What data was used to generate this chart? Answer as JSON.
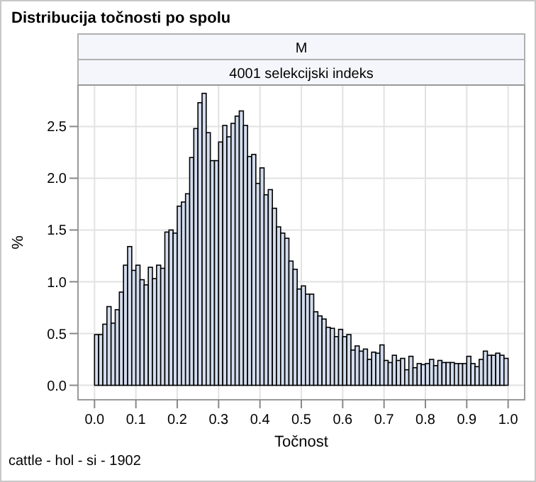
{
  "chart_data": {
    "type": "histogram",
    "title": "Distribucija točnosti po spolu",
    "subtitle": [
      "M",
      "4001 selekcijski indeks"
    ],
    "xlabel": "Točnost",
    "ylabel": "%",
    "annotations": [
      "cattle - hol - si - 1902"
    ],
    "bins": [
      0,
      0.01,
      0.02,
      0.03,
      0.04,
      0.05,
      0.06,
      0.07,
      0.08,
      0.09,
      0.1,
      0.11,
      0.12,
      0.13,
      0.14,
      0.15,
      0.16,
      0.17,
      0.18,
      0.19,
      0.2,
      0.21,
      0.22,
      0.23,
      0.24,
      0.25,
      0.26,
      0.27,
      0.28,
      0.29,
      0.3,
      0.31,
      0.32,
      0.33,
      0.34,
      0.35,
      0.36,
      0.37,
      0.38,
      0.39,
      0.4,
      0.41,
      0.42,
      0.43,
      0.44,
      0.45,
      0.46,
      0.47,
      0.48,
      0.49,
      0.5,
      0.51,
      0.52,
      0.53,
      0.54,
      0.55,
      0.56,
      0.57,
      0.58,
      0.59,
      0.6,
      0.61,
      0.62,
      0.63,
      0.64,
      0.65,
      0.66,
      0.67,
      0.68,
      0.69,
      0.7,
      0.71,
      0.72,
      0.73,
      0.74,
      0.75,
      0.76,
      0.77,
      0.78,
      0.79,
      0.8,
      0.81,
      0.82,
      0.83,
      0.84,
      0.85,
      0.86,
      0.87,
      0.88,
      0.89,
      0.9,
      0.91,
      0.92,
      0.93,
      0.94,
      0.95,
      0.96,
      0.97,
      0.98,
      0.99,
      1.0
    ],
    "values": [
      0.49,
      0.49,
      0.59,
      0.76,
      0.6,
      0.73,
      0.9,
      1.16,
      1.34,
      1.11,
      1.16,
      1.02,
      0.97,
      1.14,
      1.03,
      1.16,
      1.13,
      1.48,
      1.5,
      1.47,
      1.73,
      1.77,
      1.85,
      2.2,
      2.48,
      2.73,
      2.82,
      2.44,
      2.17,
      2.17,
      2.35,
      2.51,
      2.4,
      2.53,
      2.6,
      2.65,
      2.51,
      2.21,
      2.23,
      1.95,
      2.1,
      1.84,
      1.89,
      1.71,
      1.53,
      1.47,
      1.42,
      1.2,
      1.12,
      0.93,
      0.96,
      0.88,
      0.88,
      0.71,
      0.67,
      0.64,
      0.56,
      0.55,
      0.47,
      0.54,
      0.47,
      0.49,
      0.34,
      0.38,
      0.33,
      0.35,
      0.25,
      0.32,
      0.31,
      0.39,
      0.24,
      0.22,
      0.29,
      0.24,
      0.26,
      0.15,
      0.28,
      0.17,
      0.21,
      0.2,
      0.21,
      0.25,
      0.19,
      0.24,
      0.22,
      0.22,
      0.22,
      0.21,
      0.21,
      0.21,
      0.28,
      0.21,
      0.18,
      0.25,
      0.33,
      0.29,
      0.29,
      0.31,
      0.29,
      0.26
    ],
    "color": "#d3dced",
    "xlim": [
      -0.04,
      1.04
    ],
    "ylim": [
      -0.14,
      2.9
    ],
    "xticks": [
      {
        "value": 0,
        "label": "0.0"
      },
      0.1,
      0.2,
      0.3,
      0.4,
      0.5,
      0.6,
      0.7,
      0.8,
      0.9,
      {
        "value": 1,
        "label": "1.0"
      }
    ],
    "yticks": [
      {
        "value": 0,
        "label": "0.0"
      },
      0.5,
      {
        "value": 1,
        "label": "1.0"
      },
      1.5,
      {
        "value": 2,
        "label": "2.0"
      },
      2.5
    ],
    "grid": true
  }
}
